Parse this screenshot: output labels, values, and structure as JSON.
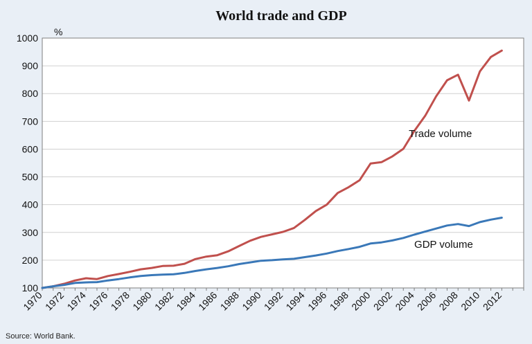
{
  "chart_data": {
    "type": "line",
    "title": "World trade and GDP",
    "ylabel": "%",
    "xlabel": "",
    "ylim": [
      100,
      1000
    ],
    "yticks": [
      100,
      200,
      300,
      400,
      500,
      600,
      700,
      800,
      900,
      1000
    ],
    "xlim": [
      1970,
      2014
    ],
    "xtick_labels": [
      "1970",
      "1972",
      "1974",
      "1976",
      "1978",
      "1980",
      "1982",
      "1984",
      "1986",
      "1988",
      "1990",
      "1992",
      "1994",
      "1996",
      "1998",
      "2000",
      "2002",
      "2004",
      "2006",
      "2008",
      "2010",
      "2012"
    ],
    "grid": true,
    "legend": "none",
    "x": [
      1970,
      1971,
      1972,
      1973,
      1974,
      1975,
      1976,
      1977,
      1978,
      1979,
      1980,
      1981,
      1982,
      1983,
      1984,
      1985,
      1986,
      1987,
      1988,
      1989,
      1990,
      1991,
      1992,
      1993,
      1994,
      1995,
      1996,
      1997,
      1998,
      1999,
      2000,
      2001,
      2002,
      2003,
      2004,
      2005,
      2006,
      2007,
      2008,
      2009,
      2010,
      2011,
      2012
    ],
    "series": [
      {
        "name": "Trade volume",
        "color": "#c0504d",
        "values": [
          100,
          106,
          115,
          127,
          135,
          132,
          143,
          150,
          158,
          167,
          172,
          179,
          180,
          187,
          204,
          213,
          218,
          232,
          251,
          270,
          284,
          293,
          302,
          316,
          345,
          377,
          400,
          442,
          463,
          488,
          548,
          553,
          574,
          601,
          665,
          720,
          790,
          848,
          868,
          775,
          880,
          932,
          955
        ]
      },
      {
        "name": "GDP volume",
        "color": "#3a78b8",
        "values": [
          100,
          106,
          111,
          118,
          120,
          121,
          127,
          132,
          138,
          143,
          146,
          148,
          149,
          154,
          161,
          167,
          172,
          178,
          186,
          192,
          198,
          200,
          203,
          205,
          211,
          217,
          224,
          233,
          240,
          248,
          260,
          264,
          271,
          280,
          292,
          303,
          314,
          325,
          330,
          323,
          337,
          346,
          353
        ]
      }
    ],
    "annotations": [
      {
        "text": "Trade volume",
        "year": 2003.5,
        "value": 643
      },
      {
        "text": "GDP volume",
        "year": 2004,
        "value": 245
      }
    ],
    "source": "Source: World Bank.",
    "colors": {
      "background": "#e9eff6",
      "plot_background": "#ffffff",
      "grid": "#d0d0d0",
      "axis": "#7f7f7f"
    }
  }
}
